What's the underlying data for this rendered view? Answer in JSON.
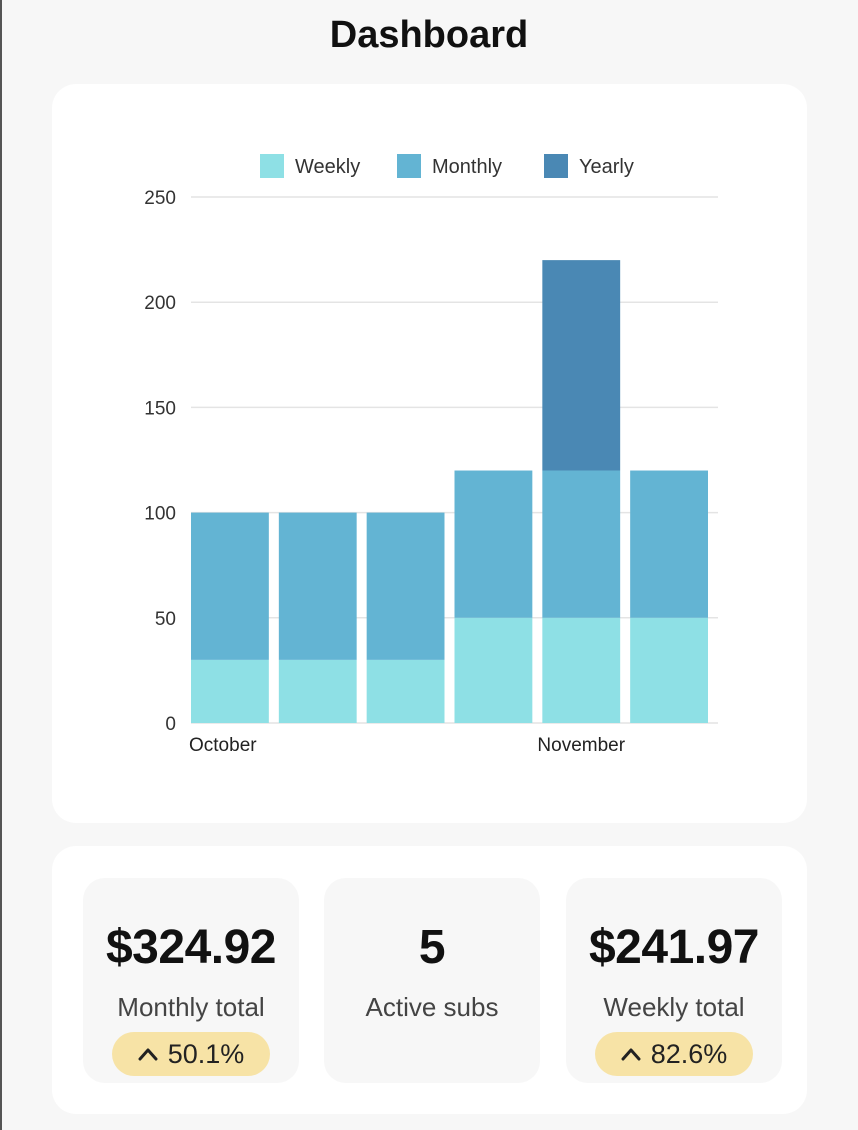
{
  "header": {
    "title": "Dashboard"
  },
  "colors": {
    "weekly": "#8ee0e5",
    "monthly": "#63b4d3",
    "yearly": "#4a88b4",
    "badge_bg": "#f7e3a6"
  },
  "chart_data": {
    "type": "bar",
    "stacked": true,
    "categories": [
      "",
      "",
      "",
      "",
      "",
      ""
    ],
    "x_tick_labels": [
      {
        "index": 0,
        "label": "October"
      },
      {
        "index": 4,
        "label": "November"
      }
    ],
    "series": [
      {
        "name": "Weekly",
        "color": "#8ee0e5",
        "values": [
          30,
          30,
          30,
          50,
          50,
          50
        ]
      },
      {
        "name": "Monthly",
        "color": "#63b4d3",
        "values": [
          70,
          70,
          70,
          70,
          70,
          70
        ]
      },
      {
        "name": "Yearly",
        "color": "#4a88b4",
        "values": [
          0,
          0,
          0,
          0,
          100,
          0
        ]
      }
    ],
    "yticks": [
      "0",
      "50",
      "100",
      "150",
      "200",
      "250"
    ],
    "ylim": [
      0,
      250
    ],
    "grid": true,
    "legend": "top"
  },
  "stats": [
    {
      "value": "$324.92",
      "label": "Monthly total",
      "change": "50.1%",
      "trend_icon": "chevron-up-icon"
    },
    {
      "value": "5",
      "label": "Active subs"
    },
    {
      "value": "$241.97",
      "label": "Weekly total",
      "change": "82.6%",
      "trend_icon": "chevron-up-icon"
    }
  ]
}
